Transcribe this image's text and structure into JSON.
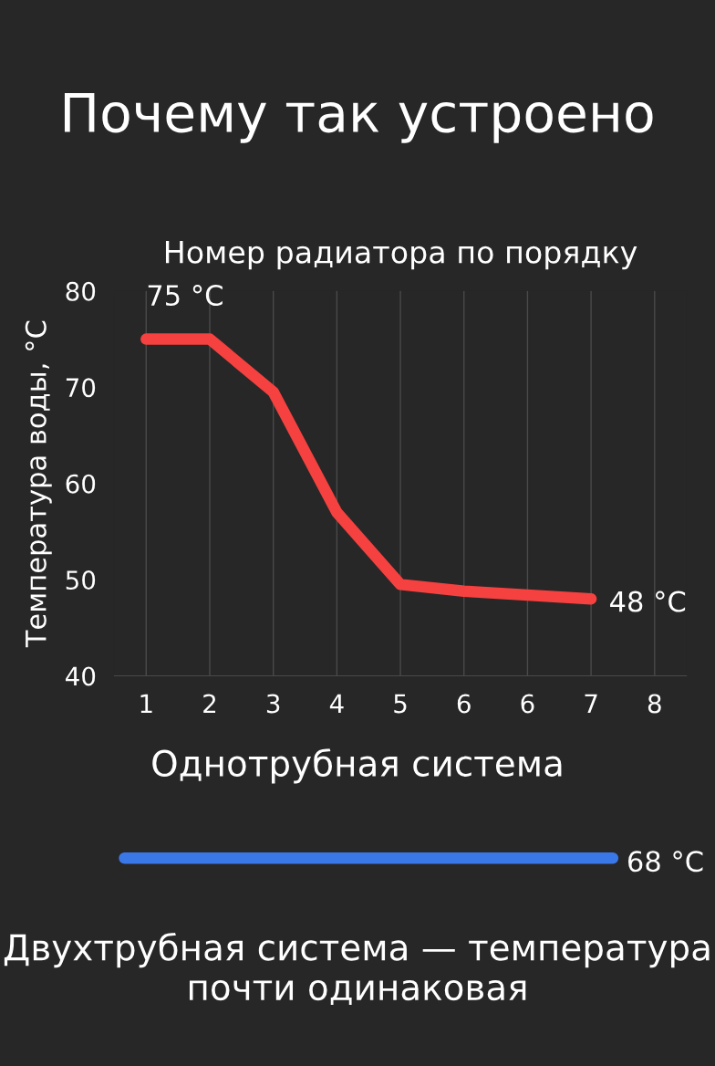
{
  "chart_data": [
    {
      "type": "line",
      "title": "Почему так устроено",
      "xlabel": "Номер радиатора по порядку",
      "ylabel": "Температура воды, °C",
      "categories": [
        "1",
        "2",
        "3",
        "4",
        "5",
        "6",
        "6",
        "7",
        "8"
      ],
      "series": [
        {
          "color": "#f5413f",
          "values": [
            75,
            75,
            69.5,
            57,
            49.5,
            48.8,
            48.4,
            48,
            null
          ],
          "value_labels": [
            "75 °C",
            null,
            null,
            null,
            null,
            null,
            null,
            "48 °C",
            null
          ]
        }
      ],
      "ylim": [
        40,
        80
      ],
      "yticks": [
        40,
        50,
        60,
        70,
        80
      ],
      "grid": "x",
      "marker": "none",
      "line_style": "solid",
      "annotations": [
        "Однотрубная система"
      ]
    },
    {
      "type": "other",
      "annotations": [
        "68 °C",
        "Двухтрубная система — температура почти одинаковая"
      ]
    }
  ]
}
